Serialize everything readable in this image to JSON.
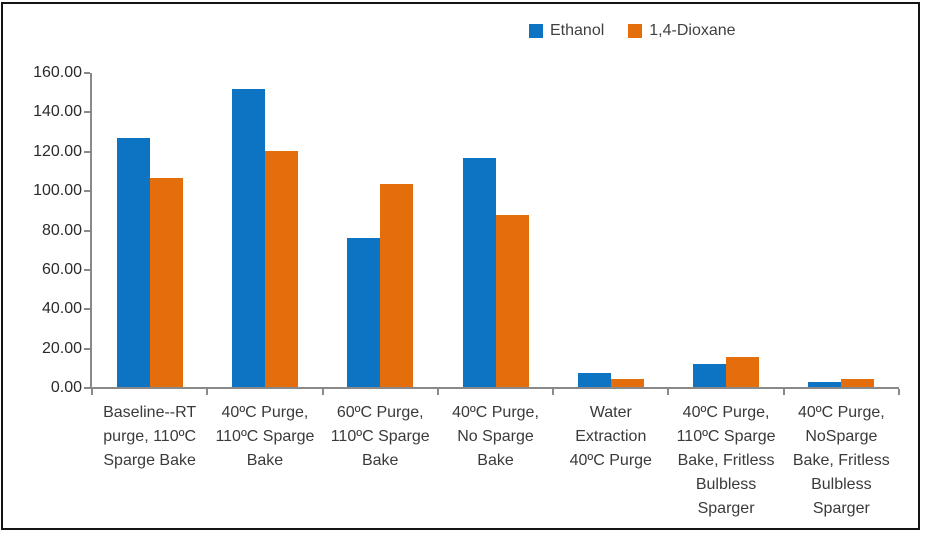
{
  "chart_data": {
    "type": "bar",
    "title": "",
    "xlabel": "",
    "ylabel": "",
    "grid": false,
    "legend_position": "top",
    "ylim": [
      0,
      160
    ],
    "ytick_step": 20,
    "ytick_labels": [
      "0.00",
      "20.00",
      "40.00",
      "60.00",
      "80.00",
      "100.00",
      "120.00",
      "140.00",
      "160.00"
    ],
    "categories": [
      "Baseline--RT purge, 110ºC Sparge Bake",
      "40ºC Purge, 110ºC Sparge Bake",
      "60ºC Purge, 110ºC Sparge Bake",
      "40ºC Purge, No Sparge Bake",
      "Water Extraction 40ºC Purge",
      "40ºC Purge, 110ºC Sparge Bake, Fritless Bulbless Sparger",
      "40ºC Purge, NoSparge Bake, Fritless Bulbless Sparger"
    ],
    "category_label_lines": [
      [
        "Baseline--RT",
        "purge, 110ºC",
        "Sparge Bake"
      ],
      [
        "40ºC Purge,",
        "110ºC Sparge",
        "Bake"
      ],
      [
        "60ºC Purge,",
        "110ºC Sparge",
        "Bake"
      ],
      [
        "40ºC Purge,",
        "No Sparge",
        "Bake"
      ],
      [
        "Water",
        "Extraction",
        "40ºC Purge"
      ],
      [
        "40ºC Purge,",
        "110ºC Sparge",
        "Bake, Fritless",
        "Bulbless",
        "Sparger"
      ],
      [
        "40ºC Purge,",
        "NoSparge",
        "Bake, Fritless",
        "Bulbless",
        "Sparger"
      ]
    ],
    "series": [
      {
        "name": "Ethanol",
        "color": "#0C74C2",
        "values": [
          126.8,
          151.9,
          76.3,
          116.6,
          7.4,
          12.2,
          3.2
        ]
      },
      {
        "name": "1,4-Dioxane",
        "color": "#E56E0C",
        "values": [
          106.9,
          120.3,
          103.8,
          87.7,
          4.6,
          15.9,
          4.7
        ]
      }
    ]
  }
}
